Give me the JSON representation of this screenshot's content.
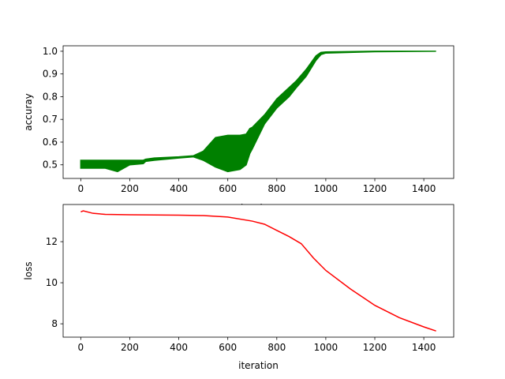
{
  "chart_data": [
    {
      "type": "area",
      "xlabel": "iteration",
      "ylabel": "accuray",
      "xlim": [
        -72,
        1522
      ],
      "ylim": [
        0.44,
        1.024
      ],
      "xticks": [
        0,
        200,
        400,
        600,
        800,
        1000,
        1200,
        1400
      ],
      "yticks": [
        0.5,
        0.6,
        0.7,
        0.8,
        0.9,
        1.0
      ],
      "ytick_labels": [
        "0.5",
        "0.6",
        "0.7",
        "0.8",
        "0.9",
        "1.0"
      ],
      "color": "#008000",
      "grid": false,
      "x": [
        0,
        100,
        150,
        200,
        255,
        265,
        300,
        400,
        460,
        500,
        550,
        600,
        650,
        675,
        690,
        700,
        750,
        800,
        850,
        880,
        920,
        960,
        980,
        1000,
        1200,
        1450
      ],
      "low": [
        0.485,
        0.485,
        0.47,
        0.5,
        0.505,
        0.515,
        0.52,
        0.53,
        0.535,
        0.52,
        0.49,
        0.47,
        0.48,
        0.5,
        0.55,
        0.57,
        0.68,
        0.75,
        0.8,
        0.84,
        0.89,
        0.96,
        0.985,
        0.992,
        0.998,
        1.0
      ],
      "high": [
        0.52,
        0.52,
        0.52,
        0.52,
        0.52,
        0.525,
        0.53,
        0.535,
        0.54,
        0.56,
        0.62,
        0.63,
        0.63,
        0.635,
        0.66,
        0.665,
        0.72,
        0.79,
        0.84,
        0.87,
        0.92,
        0.98,
        0.995,
        0.997,
        1.0,
        1.0
      ]
    },
    {
      "type": "line",
      "xlabel": "iteration",
      "ylabel": "loss",
      "xlim": [
        -72,
        1522
      ],
      "ylim": [
        7.35,
        13.81
      ],
      "xticks": [
        0,
        200,
        400,
        600,
        800,
        1000,
        1200,
        1400
      ],
      "yticks": [
        8,
        10,
        12
      ],
      "ytick_labels": [
        "8",
        "10",
        "12"
      ],
      "color": "#ff0000",
      "grid": false,
      "x": [
        0,
        10,
        50,
        100,
        200,
        400,
        500,
        600,
        700,
        750,
        800,
        850,
        900,
        950,
        1000,
        1100,
        1200,
        1300,
        1400,
        1450
      ],
      "y": [
        13.45,
        13.5,
        13.38,
        13.33,
        13.31,
        13.29,
        13.27,
        13.2,
        13.0,
        12.85,
        12.55,
        12.25,
        11.9,
        11.2,
        10.6,
        9.7,
        8.9,
        8.3,
        7.85,
        7.65
      ]
    }
  ]
}
